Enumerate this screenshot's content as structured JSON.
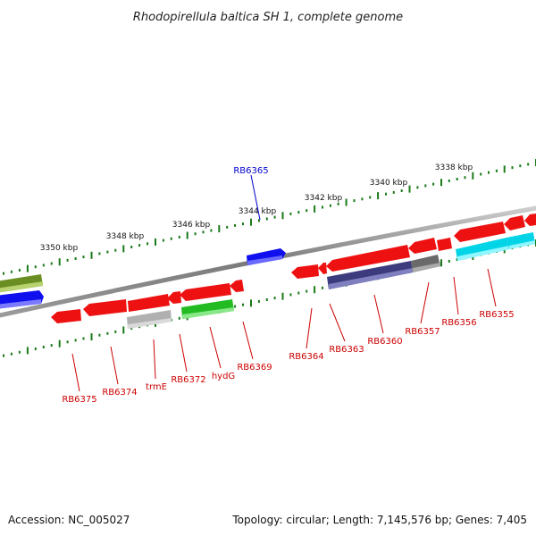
{
  "title": "Rhodopirellula baltica SH 1, complete genome",
  "footer": {
    "accession": "Accession: NC_005027",
    "summary": "Topology: circular; Length: 7,145,576 bp; Genes: 7,405"
  },
  "ticks": [
    {
      "label": "3350 kbp"
    },
    {
      "label": "3348 kbp"
    },
    {
      "label": "3346 kbp"
    },
    {
      "label": "3344 kbp"
    },
    {
      "label": "3342 kbp"
    },
    {
      "label": "3340 kbp"
    },
    {
      "label": "3338 kbp"
    }
  ],
  "gene_labels": [
    {
      "text": "RB6365",
      "color": "#0000cc"
    },
    {
      "text": "RB6375",
      "color": "#cc0000"
    },
    {
      "text": "RB6374",
      "color": "#cc0000"
    },
    {
      "text": "trmE",
      "color": "#cc0000"
    },
    {
      "text": "RB6372",
      "color": "#cc0000"
    },
    {
      "text": "hydG",
      "color": "#cc0000"
    },
    {
      "text": "RB6369",
      "color": "#cc0000"
    },
    {
      "text": "RB6364",
      "color": "#cc0000"
    },
    {
      "text": "RB6363",
      "color": "#cc0000"
    },
    {
      "text": "RB6360",
      "color": "#cc0000"
    },
    {
      "text": "RB6357",
      "color": "#cc0000"
    },
    {
      "text": "RB6356",
      "color": "#cc0000"
    },
    {
      "text": "RB6355",
      "color": "#cc0000"
    }
  ],
  "colors": {
    "red_gene": "#ff1a1a",
    "blue_gene": "#1a1aff",
    "olive_gene": "#6b8e23",
    "green_gene": "#33cc33",
    "gray_gene": "#aaaaaa",
    "darkgray_gene": "#777777",
    "navy_gene": "#4a4a8c",
    "cyan_gene": "#11e0f0",
    "backbone": "#888888",
    "tick_green": "#1a7a1a"
  }
}
